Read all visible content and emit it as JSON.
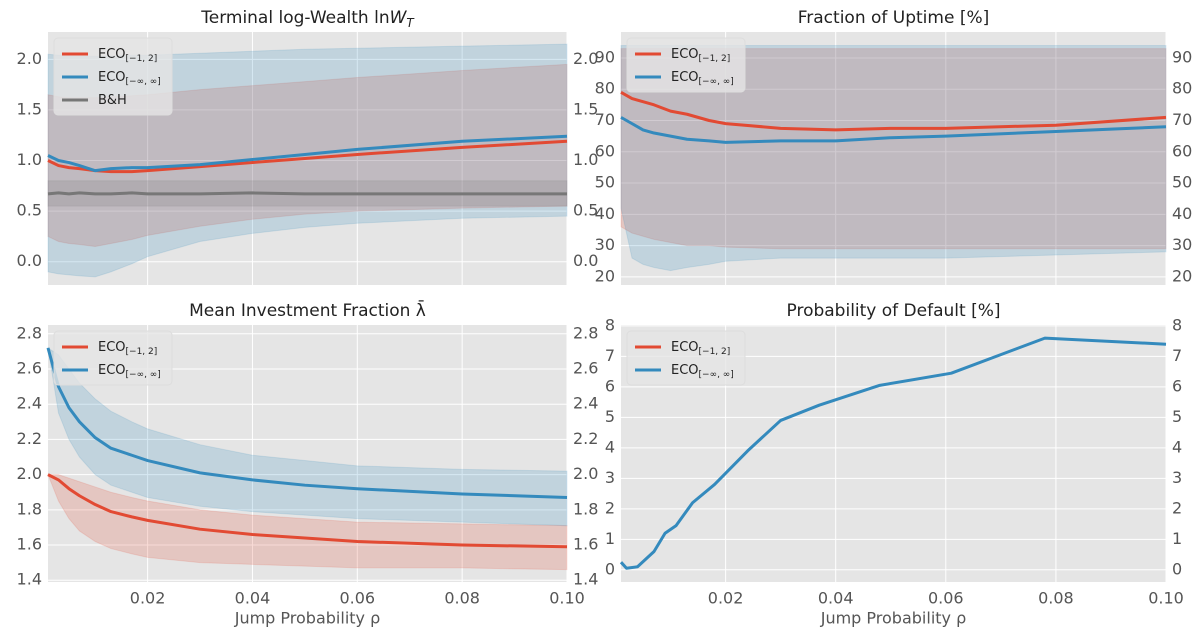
{
  "chart_data": [
    {
      "type": "line",
      "title": "Terminal log-Wealth ln",
      "title_var": "W",
      "title_sub": "T",
      "x": [
        0.001,
        0.003,
        0.005,
        0.007,
        0.01,
        0.013,
        0.017,
        0.02,
        0.03,
        0.04,
        0.05,
        0.06,
        0.08,
        0.1
      ],
      "xlim": [
        0.001,
        0.1
      ],
      "xticks": [
        0.02,
        0.04,
        0.06,
        0.08,
        0.1
      ],
      "ylim": [
        -0.23,
        2.27
      ],
      "yticks": [
        {
          "value": 0,
          "label": "0.0"
        },
        0.5,
        {
          "value": 1,
          "label": "1.0"
        },
        1.5,
        {
          "value": 2,
          "label": "2.0"
        }
      ],
      "grid": true,
      "right_ticks": true,
      "legend": "upper left",
      "series": [
        {
          "name": "ECO",
          "subscript": "[−1, 2]",
          "color": "#e24a33",
          "values": [
            1.0,
            0.95,
            0.93,
            0.92,
            0.9,
            0.89,
            0.89,
            0.9,
            0.94,
            0.98,
            1.02,
            1.06,
            1.13,
            1.19
          ],
          "upper": [
            1.65,
            1.63,
            1.62,
            1.62,
            1.62,
            1.63,
            1.64,
            1.65,
            1.7,
            1.74,
            1.78,
            1.82,
            1.89,
            1.95
          ],
          "lower": [
            0.25,
            0.2,
            0.18,
            0.17,
            0.15,
            0.18,
            0.22,
            0.26,
            0.35,
            0.42,
            0.47,
            0.5,
            0.53,
            0.55
          ]
        },
        {
          "name": "ECO",
          "subscript": "[−∞, ∞]",
          "color": "#348abd",
          "values": [
            1.05,
            1.0,
            0.98,
            0.95,
            0.9,
            0.92,
            0.93,
            0.93,
            0.96,
            1.01,
            1.06,
            1.11,
            1.19,
            1.24
          ],
          "upper": [
            2.05,
            2.04,
            2.03,
            2.03,
            2.03,
            2.03,
            2.04,
            2.04,
            2.06,
            2.08,
            2.1,
            2.11,
            2.13,
            2.15
          ],
          "lower": [
            -0.1,
            -0.12,
            -0.13,
            -0.14,
            -0.15,
            -0.1,
            -0.02,
            0.05,
            0.2,
            0.28,
            0.34,
            0.38,
            0.43,
            0.45
          ]
        },
        {
          "name": "B&H",
          "color": "#777777",
          "values": [
            0.67,
            0.68,
            0.67,
            0.68,
            0.67,
            0.67,
            0.68,
            0.67,
            0.67,
            0.68,
            0.67,
            0.67,
            0.67,
            0.67
          ],
          "upper": [
            0.8,
            0.8,
            0.8,
            0.8,
            0.8,
            0.8,
            0.8,
            0.8,
            0.8,
            0.8,
            0.8,
            0.8,
            0.8,
            0.8
          ],
          "lower": [
            0.55,
            0.55,
            0.55,
            0.55,
            0.55,
            0.55,
            0.55,
            0.55,
            0.55,
            0.55,
            0.55,
            0.55,
            0.55,
            0.55
          ]
        }
      ]
    },
    {
      "type": "line",
      "title": "Fraction of Uptime [%]",
      "x": [
        0.001,
        0.003,
        0.005,
        0.007,
        0.01,
        0.013,
        0.017,
        0.02,
        0.03,
        0.04,
        0.05,
        0.06,
        0.08,
        0.1
      ],
      "xlim": [
        0.001,
        0.1
      ],
      "xticks": [
        0.02,
        0.04,
        0.06,
        0.08,
        0.1
      ],
      "ylim": [
        17.4,
        98.3
      ],
      "yticks": [
        20,
        30,
        40,
        50,
        60,
        70,
        80,
        90
      ],
      "grid": true,
      "right_ticks": true,
      "legend": "upper left",
      "series": [
        {
          "name": "ECO",
          "subscript": "[−1, 2]",
          "color": "#e24a33",
          "values": [
            79,
            77,
            76,
            75,
            73,
            72,
            70,
            69,
            67.5,
            67,
            67.5,
            67.5,
            68.5,
            71
          ],
          "upper": [
            93,
            93,
            93,
            93,
            93,
            93,
            93,
            93,
            93,
            93,
            93,
            93,
            93,
            93
          ],
          "lower": [
            36,
            34,
            33,
            32,
            31,
            30,
            30,
            29.5,
            29,
            29,
            29,
            29,
            29,
            29
          ]
        },
        {
          "name": "ECO",
          "subscript": "[−∞, ∞]",
          "color": "#348abd",
          "values": [
            71,
            69,
            67,
            66,
            65,
            64,
            63.5,
            63,
            63.5,
            63.5,
            64.5,
            65,
            66.5,
            68
          ],
          "upper": [
            94,
            94,
            94,
            94,
            94,
            94,
            94,
            94,
            94,
            94,
            94,
            94,
            94,
            94
          ],
          "lower": [
            42,
            26,
            24,
            23,
            22,
            23,
            24,
            25,
            26,
            26,
            26,
            26,
            27,
            28
          ]
        }
      ]
    },
    {
      "type": "line",
      "title": "Mean Investment Fraction λ̄",
      "x": [
        0.001,
        0.003,
        0.005,
        0.007,
        0.01,
        0.013,
        0.017,
        0.02,
        0.03,
        0.04,
        0.05,
        0.06,
        0.08,
        0.1
      ],
      "xlim": [
        0.001,
        0.1
      ],
      "xticks": [
        0.02,
        0.04,
        0.06,
        0.08,
        {
          "value": 0.1,
          "label": "0.10"
        }
      ],
      "xlabel": "Jump Probability ρ",
      "ylim": [
        1.39,
        2.85
      ],
      "yticks": [
        1.4,
        1.6,
        1.8,
        {
          "value": 2,
          "label": "2.0"
        },
        2.2,
        2.4,
        2.6,
        2.8
      ],
      "grid": true,
      "right_ticks": true,
      "legend": "upper left",
      "series": [
        {
          "name": "ECO",
          "subscript": "[−1, 2]",
          "color": "#e24a33",
          "values": [
            2.0,
            1.97,
            1.92,
            1.88,
            1.83,
            1.79,
            1.76,
            1.74,
            1.69,
            1.66,
            1.64,
            1.62,
            1.6,
            1.59
          ],
          "upper": [
            2.0,
            2.0,
            1.98,
            1.96,
            1.93,
            1.9,
            1.87,
            1.85,
            1.8,
            1.77,
            1.75,
            1.73,
            1.72,
            1.71
          ],
          "lower": [
            2.0,
            1.85,
            1.75,
            1.68,
            1.62,
            1.58,
            1.55,
            1.53,
            1.5,
            1.49,
            1.48,
            1.47,
            1.47,
            1.46
          ]
        },
        {
          "name": "ECO",
          "subscript": "[−∞, ∞]",
          "color": "#348abd",
          "values": [
            2.72,
            2.5,
            2.38,
            2.3,
            2.21,
            2.15,
            2.11,
            2.08,
            2.01,
            1.97,
            1.94,
            1.92,
            1.89,
            1.87
          ],
          "upper": [
            2.72,
            2.68,
            2.6,
            2.52,
            2.43,
            2.36,
            2.3,
            2.26,
            2.17,
            2.11,
            2.08,
            2.05,
            2.03,
            2.02
          ],
          "lower": [
            2.72,
            2.35,
            2.2,
            2.1,
            2.0,
            1.94,
            1.9,
            1.87,
            1.82,
            1.79,
            1.77,
            1.75,
            1.73,
            1.71
          ]
        }
      ]
    },
    {
      "type": "line",
      "title": "Probability of Default [%]",
      "x": [
        0.001,
        0.002,
        0.004,
        0.007,
        0.009,
        0.011,
        0.014,
        0.018,
        0.024,
        0.03,
        0.037,
        0.048,
        0.061,
        0.078,
        0.1
      ],
      "xlim": [
        0.001,
        0.1
      ],
      "xticks": [
        0.02,
        0.04,
        0.06,
        0.08,
        {
          "value": 0.1,
          "label": "0.10"
        }
      ],
      "xlabel": "Jump Probability ρ",
      "ylim": [
        -0.4,
        8.03
      ],
      "yticks": [
        0,
        1,
        2,
        3,
        4,
        5,
        6,
        7,
        8
      ],
      "grid": true,
      "right_ticks": true,
      "legend": "upper left",
      "series": [
        {
          "name": "ECO",
          "subscript": "[−1, 2]",
          "color": "#e24a33",
          "values": [
            null,
            null,
            null,
            null,
            null,
            null,
            null,
            null,
            null,
            null,
            null,
            null,
            null,
            null,
            null
          ]
        },
        {
          "name": "ECO",
          "subscript": "[−∞, ∞]",
          "color": "#348abd",
          "values": [
            0.25,
            0.05,
            0.1,
            0.6,
            1.2,
            1.45,
            2.2,
            2.8,
            3.9,
            4.9,
            5.4,
            6.05,
            6.45,
            7.6,
            7.4
          ]
        }
      ]
    }
  ]
}
